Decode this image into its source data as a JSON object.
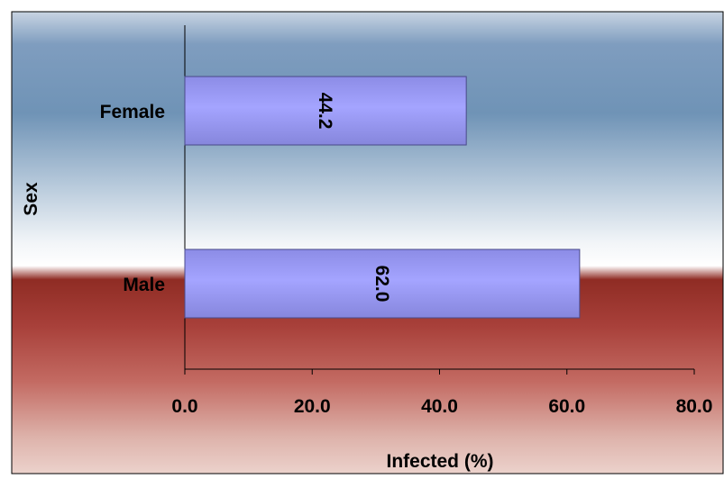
{
  "chart_data": {
    "type": "bar",
    "orientation": "horizontal",
    "categories": [
      "Female",
      "Male"
    ],
    "values": [
      44.2,
      62.0
    ],
    "value_labels": [
      "44.2",
      "62.0"
    ],
    "title": "",
    "xlabel": "Infected (%)",
    "ylabel": "Sex",
    "xlim": [
      0,
      80
    ],
    "xticks": [
      "0.0",
      "20.0",
      "40.0",
      "60.0",
      "80.0"
    ],
    "grid": false,
    "legend": "none",
    "colors": {
      "bar_fill": "#a0a0ff",
      "bar_edge": "#4a4a8a",
      "background_top": "#6f8fb5",
      "background_mid": "#ffffff",
      "background_band": "#8b2a22",
      "background_bottom": "#e8c8c0"
    }
  }
}
